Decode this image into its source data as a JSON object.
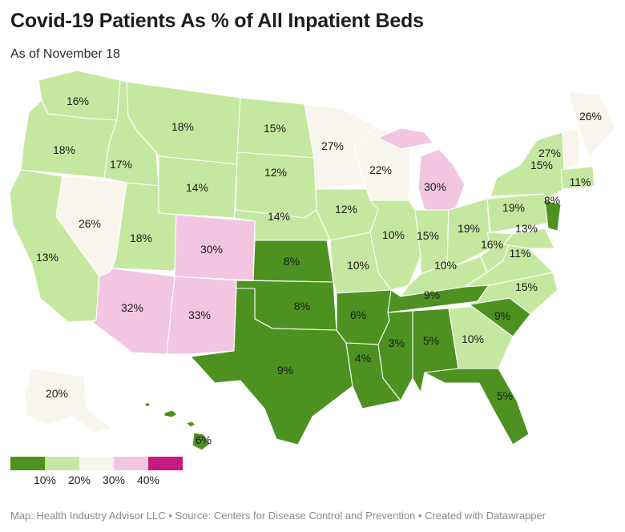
{
  "title": "Covid-19 Patients As % of All Inpatient Beds",
  "subtitle": "As of November 18",
  "footer": "Map: Health Industry Advisor LLC • Source: Centers for Disease Control and Prevention • Created with Datawrapper",
  "colors": {
    "band_0_10": "#4d9221",
    "band_10_20": "#c5e8a0",
    "band_20_30": "#f8f5ec",
    "band_30_40": "#f2c5e1",
    "band_40_plus": "#c51b7d"
  },
  "legend": {
    "swatches": [
      "#4d9221",
      "#c5e8a0",
      "#f8f5ec",
      "#f2c5e1",
      "#c51b7d"
    ],
    "ticks": [
      "10%",
      "20%",
      "30%",
      "40%"
    ]
  },
  "map_data": {
    "type": "choropleth",
    "unit": "%",
    "states": [
      {
        "abbr": "WA",
        "value": 16,
        "label": "16%"
      },
      {
        "abbr": "OR",
        "value": 18,
        "label": "18%"
      },
      {
        "abbr": "CA",
        "value": 13,
        "label": "13%"
      },
      {
        "abbr": "ID",
        "value": 17,
        "label": "17%"
      },
      {
        "abbr": "NV",
        "value": 26,
        "label": "26%"
      },
      {
        "abbr": "MT",
        "value": 18,
        "label": "18%"
      },
      {
        "abbr": "WY",
        "value": 14,
        "label": "14%"
      },
      {
        "abbr": "UT",
        "value": 18,
        "label": "18%"
      },
      {
        "abbr": "CO",
        "value": 30,
        "label": "30%"
      },
      {
        "abbr": "AZ",
        "value": 32,
        "label": "32%"
      },
      {
        "abbr": "NM",
        "value": 33,
        "label": "33%"
      },
      {
        "abbr": "ND",
        "value": 15,
        "label": "15%"
      },
      {
        "abbr": "SD",
        "value": 12,
        "label": "12%"
      },
      {
        "abbr": "NE",
        "value": 14,
        "label": "14%"
      },
      {
        "abbr": "KS",
        "value": 8,
        "label": "8%"
      },
      {
        "abbr": "OK",
        "value": 8,
        "label": "8%"
      },
      {
        "abbr": "TX",
        "value": 9,
        "label": "9%"
      },
      {
        "abbr": "MN",
        "value": 27,
        "label": "27%"
      },
      {
        "abbr": "IA",
        "value": 12,
        "label": "12%"
      },
      {
        "abbr": "MO",
        "value": 10,
        "label": "10%"
      },
      {
        "abbr": "AR",
        "value": 6,
        "label": "6%"
      },
      {
        "abbr": "LA",
        "value": 4,
        "label": "4%"
      },
      {
        "abbr": "WI",
        "value": 22,
        "label": "22%"
      },
      {
        "abbr": "MI",
        "value": 30,
        "label": "30%"
      },
      {
        "abbr": "IL",
        "value": 10,
        "label": "10%"
      },
      {
        "abbr": "IN",
        "value": 15,
        "label": "15%"
      },
      {
        "abbr": "OH",
        "value": 19,
        "label": "19%"
      },
      {
        "abbr": "KY",
        "value": 10,
        "label": "10%"
      },
      {
        "abbr": "TN",
        "value": 9,
        "label": "9%"
      },
      {
        "abbr": "MS",
        "value": 3,
        "label": "3%"
      },
      {
        "abbr": "AL",
        "value": 5,
        "label": "5%"
      },
      {
        "abbr": "GA",
        "value": 10,
        "label": "10%"
      },
      {
        "abbr": "FL",
        "value": 5,
        "label": "5%"
      },
      {
        "abbr": "SC",
        "value": 9,
        "label": "9%"
      },
      {
        "abbr": "NC",
        "value": 15,
        "label": "15%"
      },
      {
        "abbr": "VA",
        "value": 11,
        "label": "11%"
      },
      {
        "abbr": "WV",
        "value": 16,
        "label": "16%"
      },
      {
        "abbr": "PA",
        "value": 19,
        "label": "19%"
      },
      {
        "abbr": "MD",
        "value": 13,
        "label": "13%"
      },
      {
        "abbr": "NJ",
        "value": 8,
        "label": "8%"
      },
      {
        "abbr": "NY",
        "value": 15,
        "label": "15%"
      },
      {
        "abbr": "VT",
        "value": 27,
        "label": "27%"
      },
      {
        "abbr": "ME",
        "value": 26,
        "label": "26%"
      },
      {
        "abbr": "MA",
        "value": 11,
        "label": "11%"
      },
      {
        "abbr": "AK",
        "value": 20,
        "label": "20%"
      },
      {
        "abbr": "HI",
        "value": 6,
        "label": "6%"
      }
    ]
  }
}
